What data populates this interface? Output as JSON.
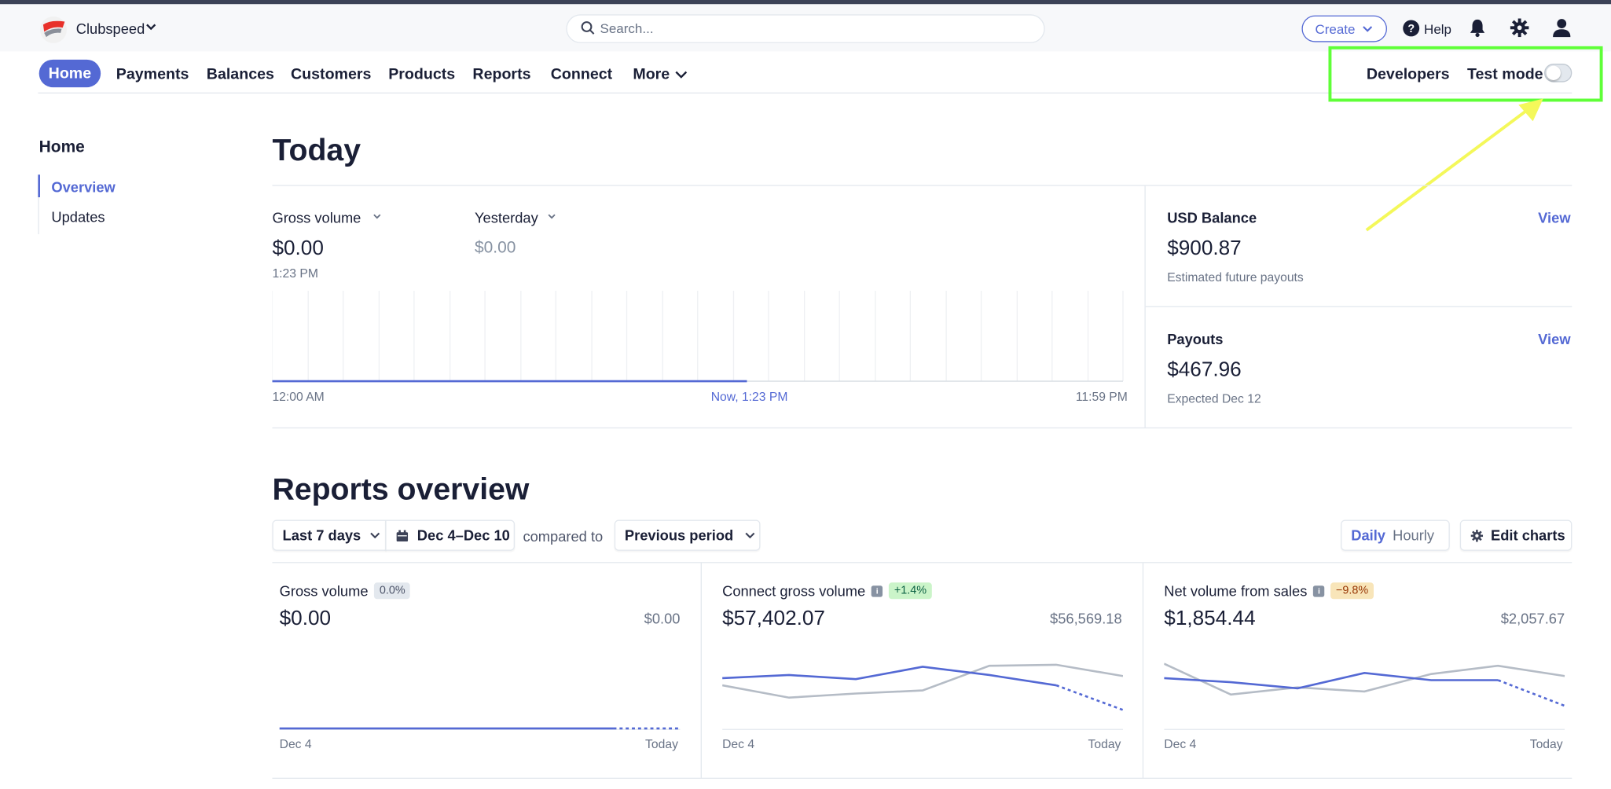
{
  "topbar": {
    "account_name": "Clubspeed",
    "search_placeholder": "Search...",
    "create_label": "Create",
    "help_label": "Help"
  },
  "nav": {
    "items": [
      "Home",
      "Payments",
      "Balances",
      "Customers",
      "Products",
      "Reports",
      "Connect",
      "More"
    ],
    "developers": "Developers",
    "test_mode": "Test mode",
    "test_mode_on": false
  },
  "sidebar": {
    "title": "Home",
    "items": [
      "Overview",
      "Updates"
    ]
  },
  "today": {
    "title": "Today",
    "gross_label": "Gross volume",
    "gross_value": "$0.00",
    "gross_time": "1:23 PM",
    "yesterday_label": "Yesterday",
    "yesterday_value": "$0.00",
    "axis_start": "12:00 AM",
    "axis_now": "Now, 1:23 PM",
    "axis_end": "11:59 PM",
    "balance_label": "USD Balance",
    "balance_value": "$900.87",
    "balance_sub": "Estimated future payouts",
    "payouts_label": "Payouts",
    "payouts_value": "$467.96",
    "payouts_sub": "Expected Dec 12",
    "view_label": "View"
  },
  "reports": {
    "title": "Reports overview",
    "range": "Last 7 days",
    "dates": "Dec 4–Dec 10",
    "compared_to": "compared to",
    "compare_period": "Previous period",
    "daily": "Daily",
    "hourly": "Hourly",
    "edit_charts": "Edit charts",
    "cards": [
      {
        "title": "Gross volume",
        "badge": "0.0%",
        "badge_color": "#e3e8ee",
        "badge_text": "#4f566b",
        "info": false,
        "value": "$0.00",
        "prev": "$0.00",
        "x_start": "Dec 4",
        "x_end": "Today"
      },
      {
        "title": "Connect gross volume",
        "badge": "+1.4%",
        "badge_color": "#cbf4c9",
        "badge_text": "#0e6245",
        "info": true,
        "value": "$57,402.07",
        "prev": "$56,569.18",
        "x_start": "Dec 4",
        "x_end": "Today"
      },
      {
        "title": "Net volume from sales",
        "badge": "−9.8%",
        "badge_color": "#f8e5b9",
        "badge_text": "#983705",
        "info": true,
        "value": "$1,854.44",
        "prev": "$2,057.67",
        "x_start": "Dec 4",
        "x_end": "Today"
      }
    ]
  },
  "colors": {
    "accent": "#5469d4",
    "highlight": "#5fff38",
    "arrow": "#f4f85a"
  }
}
